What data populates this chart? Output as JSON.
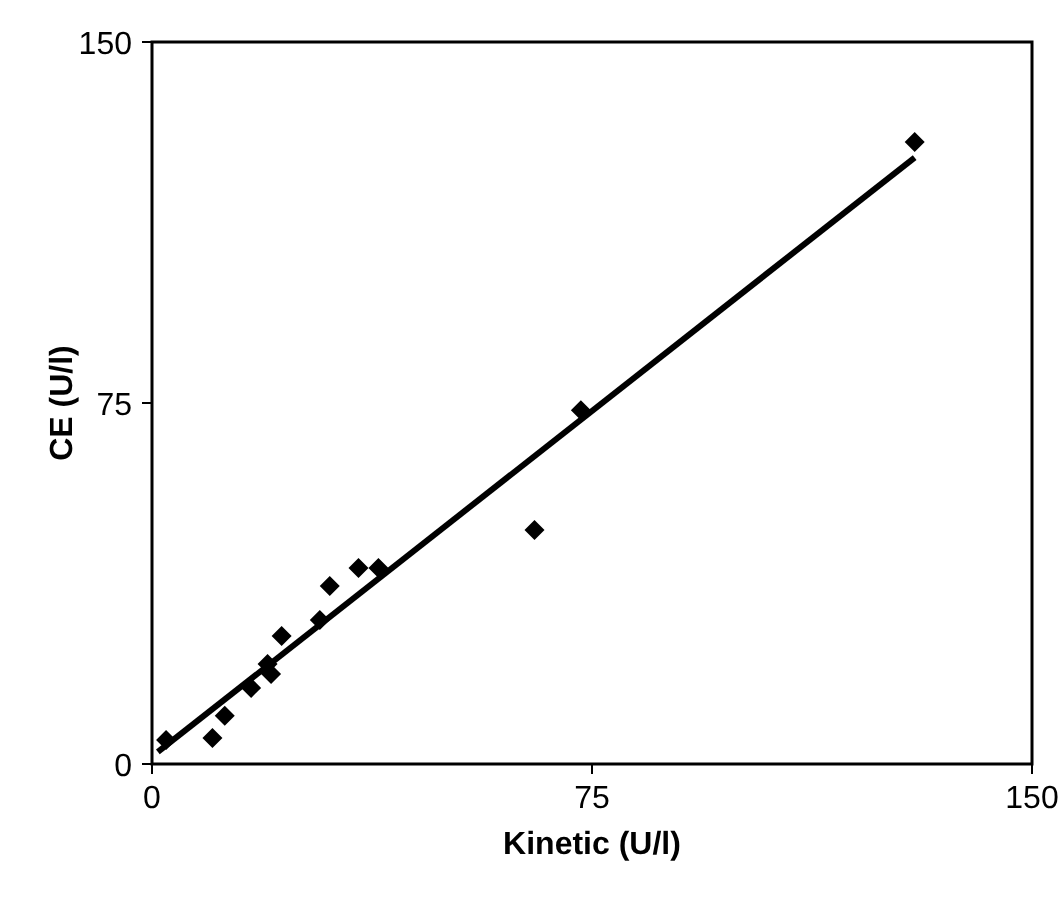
{
  "chart_data": {
    "type": "scatter",
    "xlabel": "Kinetic (U/l)",
    "ylabel": "CE (U/l)",
    "xlim": [
      0,
      150
    ],
    "ylim": [
      0,
      150
    ],
    "xticks": [
      0,
      75,
      150
    ],
    "yticks": [
      0,
      75,
      150
    ],
    "marker": "diamond",
    "grid": false,
    "series": [
      {
        "color": "#000000",
        "x": [
          2.4,
          10.3,
          12.4,
          16.9,
          20.3,
          19.7,
          22.1,
          28.6,
          30.3,
          35.2,
          38.6,
          65.2,
          73.1,
          130
        ],
        "values": [
          5.0,
          5.4,
          10.0,
          15.8,
          18.7,
          20.8,
          26.6,
          29.9,
          37.0,
          40.7,
          40.7,
          48.6,
          73.5,
          129.2
        ]
      },
      {
        "type": "line",
        "marker": "none",
        "color": "#000000",
        "x": [
          1,
          130
        ],
        "values": [
          2.5,
          126
        ]
      }
    ]
  }
}
